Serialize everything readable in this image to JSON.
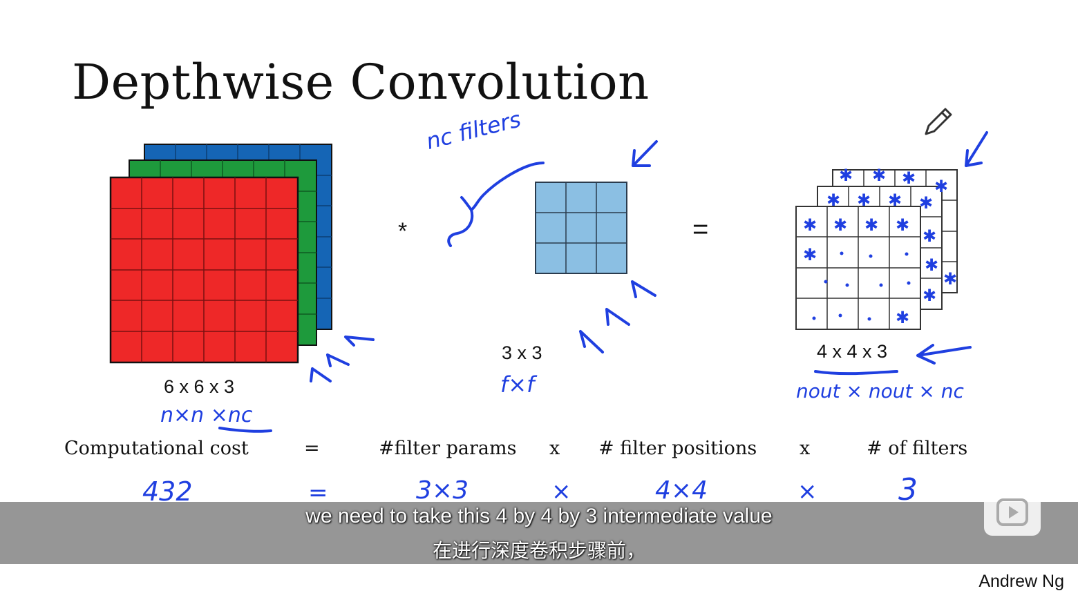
{
  "slide": {
    "title": "Depthwise Convolution",
    "input_label": "6 x 6 x 3",
    "input_hand": "n×n ×nc",
    "operator_star": "*",
    "filter_count_hand": "nc  filters",
    "filter_label": "3 x 3",
    "filter_hand": "f×f",
    "equals": "=",
    "output_label": "4 x 4 x 3",
    "output_hand": "nout × nout  × nc"
  },
  "cost_row": {
    "label": "Computational cost",
    "eq": "=",
    "term1": "#filter params",
    "x1": "x",
    "term2": "# filter positions",
    "x2": "x",
    "term3": "# of filters"
  },
  "cost_hand": {
    "total": "432",
    "eq": "=",
    "v1": "3×3",
    "x1": "×",
    "v2": "4×4",
    "x2": "×",
    "v3": "3"
  },
  "subtitles": {
    "en": "we need to take this 4 by 4 by 3 intermediate value",
    "zh": "在进行深度卷积步骤前，"
  },
  "author": "Andrew Ng",
  "colors": {
    "red": "#ee2828",
    "green": "#1e9a3c",
    "blue": "#1565b5",
    "filter": "#8bbfe3",
    "ink": "#1f3fe0"
  }
}
